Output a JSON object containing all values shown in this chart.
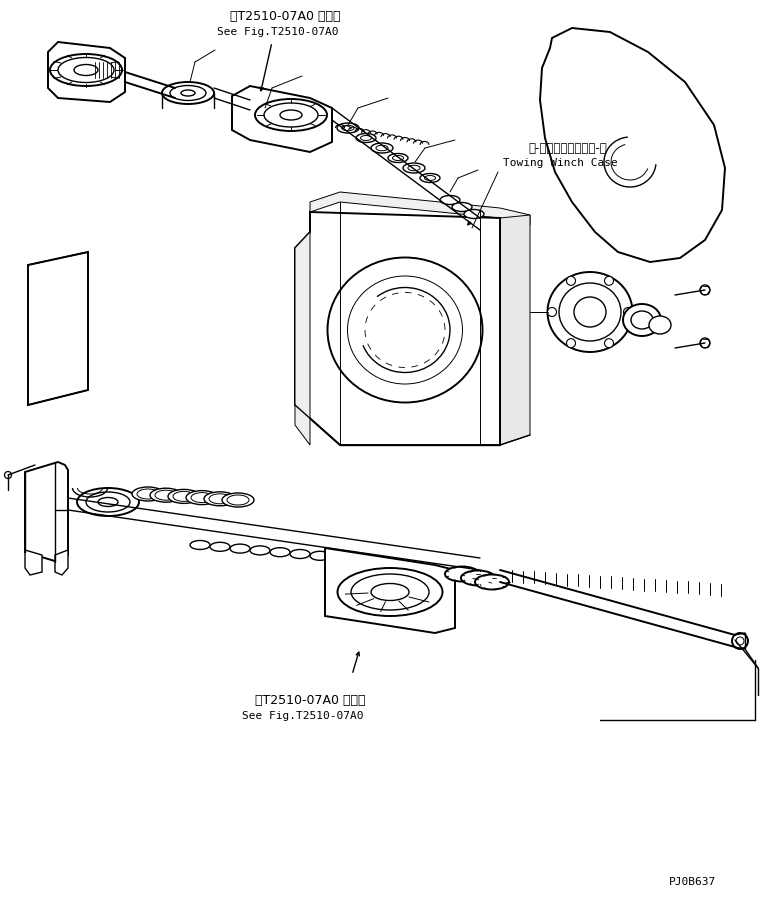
{
  "bg_color": "#ffffff",
  "line_color": "#000000",
  "fig_width": 7.66,
  "fig_height": 9.02,
  "dpi": 100,
  "title_jp_top": "第T2510-07A0 図参照",
  "title_en_top": "See Fig.T2510-07A0",
  "label_winch_jp": "ト-インダウィンチケ-ス",
  "label_winch_en": "Towing Winch Case",
  "title_jp_bot": "第T2510-07A0 図参照",
  "title_en_bot": "See Fig.T2510-07A0",
  "part_number": "PJ0B637"
}
